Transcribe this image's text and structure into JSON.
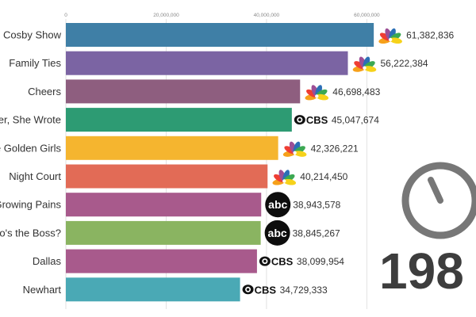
{
  "chart_data": {
    "type": "bar",
    "orientation": "horizontal",
    "categories": [
      "The Cosby Show",
      "Family Ties",
      "Cheers",
      "Murder, She Wrote",
      "The Golden Girls",
      "Night Court",
      "Growing Pains",
      "Who's the Boss?",
      "Dallas",
      "Newhart"
    ],
    "values": [
      61382836,
      56222384,
      46698483,
      45047674,
      42326221,
      40214450,
      38943578,
      38845267,
      38099954,
      34729333
    ],
    "value_labels": [
      "61,382,836",
      "56,222,384",
      "46,698,483",
      "45,047,674",
      "42,326,221",
      "40,214,450",
      "38,943,578",
      "38,845,267",
      "38,099,954",
      "34,729,333"
    ],
    "networks": [
      "NBC",
      "NBC",
      "NBC",
      "CBS",
      "NBC",
      "NBC",
      "ABC",
      "ABC",
      "CBS",
      "CBS"
    ],
    "colors": [
      "#3f7fa6",
      "#7b64a3",
      "#8e5e7f",
      "#2d9b73",
      "#f5b52f",
      "#e26b56",
      "#a85a8c",
      "#8ab461",
      "#a85a8c",
      "#4aa9b5"
    ],
    "xlim": [
      0,
      65000000
    ],
    "xticks": [
      0,
      20000000,
      40000000,
      60000000
    ],
    "xtick_labels": [
      "0",
      "20,000,000",
      "40,000,000",
      "60,000,000"
    ],
    "grid": true,
    "network_logo_text": {
      "CBS": "CBS",
      "ABC": "abc"
    },
    "year_label": "198",
    "clock_hour_fraction": 0.95
  }
}
